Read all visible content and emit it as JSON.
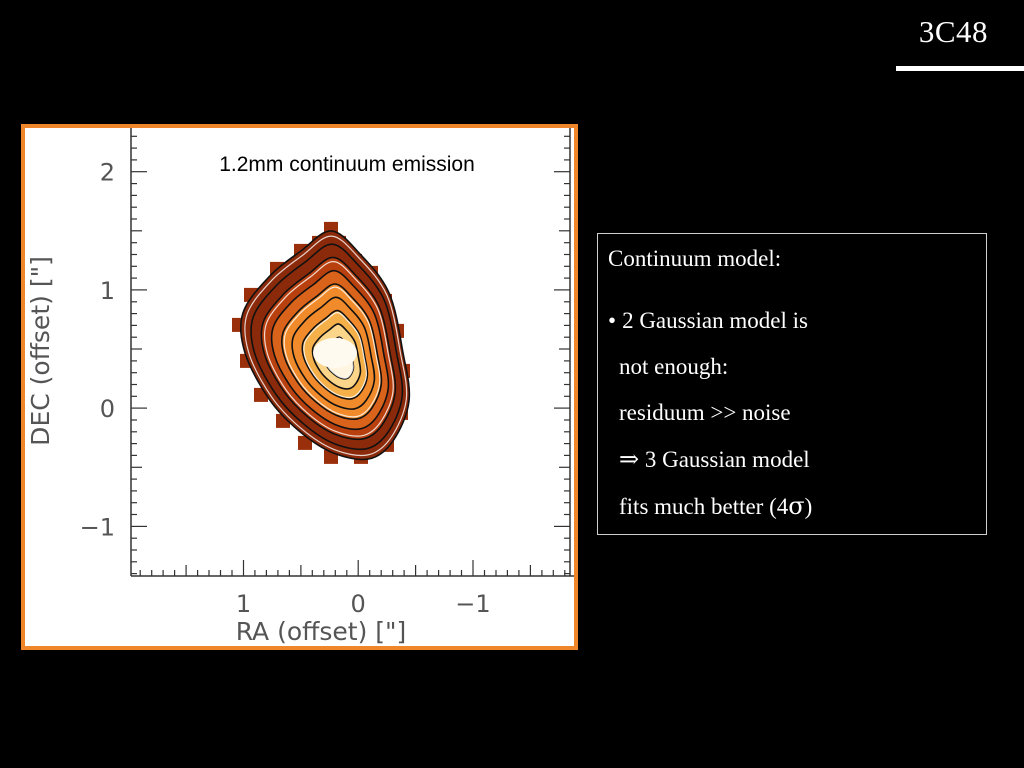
{
  "slide": {
    "title": "3C48"
  },
  "textbox": {
    "heading": "Continuum model:",
    "bullet": "•",
    "lines": [
      "2 Gaussian model is",
      "not enough:",
      "residuum >> noise",
      "3 Gaussian model",
      "fits much better (4",
      ")"
    ],
    "implies_symbol": "⇒",
    "sigma_symbol": "σ"
  },
  "chart_data": {
    "type": "heatmap",
    "title": "1.2mm continuum emission",
    "xlabel": "RA (offset) [\"]",
    "ylabel": "DEC (offset) [\"]",
    "xlim": [
      1.98,
      -1.88
    ],
    "ylim": [
      -1.42,
      2.37
    ],
    "x_reversed": true,
    "x_ticks": [
      1,
      0,
      -1
    ],
    "x_tick_labels": [
      "1",
      "0",
      "−1"
    ],
    "y_ticks": [
      -1,
      0,
      1,
      2
    ],
    "y_tick_labels": [
      "−1",
      "0",
      "1",
      "2"
    ],
    "grid": false,
    "emission_peak": {
      "x": 0.15,
      "y": 0.4
    },
    "colormap": [
      "#8b2a0a",
      "#b8400f",
      "#d9631a",
      "#f08a2a",
      "#f6b04a",
      "#fbd68a",
      "#fff5e0"
    ],
    "contour_levels": 9
  }
}
